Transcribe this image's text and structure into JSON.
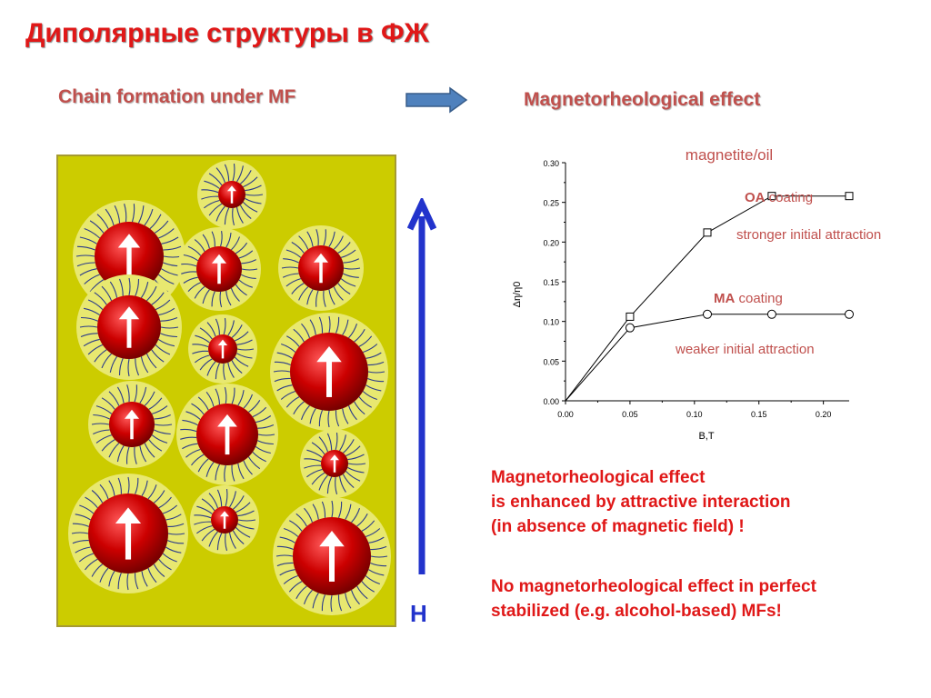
{
  "slide": {
    "title": "Диполярные структуры в ФЖ",
    "left_subtitle": "Chain formation under MF",
    "right_subtitle": "Magnetorheological effect",
    "field_label": "H",
    "notes": [
      [
        "Magnetorheological effect",
        "is enhanced by attractive interaction",
        "(in absence of magnetic field) !"
      ],
      [
        "No magnetorheological effect in perfect",
        "stabilized (e.g. alcohol-based) MFs!"
      ]
    ],
    "colors": {
      "title": "#e01818",
      "subtitle": "#c0504d",
      "box": "#cccc00",
      "particle_core": "#cc0000",
      "shell": "#e8e870",
      "field_arrow": "#2233cc",
      "connector_arrow": "#4f81bd"
    }
  },
  "chart_data": {
    "type": "line",
    "title": "magnetite/oil",
    "xlabel": "B,T",
    "ylabel": "Δη/η0",
    "xlim": [
      0.0,
      0.22
    ],
    "ylim": [
      0.0,
      0.3
    ],
    "x_ticks": [
      "0.00",
      "0.05",
      "0.10",
      "0.15",
      "0.20"
    ],
    "y_ticks": [
      "0.00",
      "0.05",
      "0.10",
      "0.15",
      "0.20",
      "0.25",
      "0.30"
    ],
    "series": [
      {
        "name": "OA coating",
        "marker": "square",
        "x": [
          0.0,
          0.05,
          0.11,
          0.16,
          0.22
        ],
        "y": [
          0.0,
          0.106,
          0.212,
          0.258,
          0.258
        ]
      },
      {
        "name": "MA coating",
        "marker": "circle",
        "x": [
          0.0,
          0.05,
          0.11,
          0.16,
          0.22
        ],
        "y": [
          0.0,
          0.092,
          0.109,
          0.109,
          0.109
        ]
      }
    ],
    "annotations": [
      {
        "bold": "OA",
        "text": " coating"
      },
      {
        "bold": "",
        "text": "stronger initial attraction"
      },
      {
        "bold": "MA",
        "text": " coating"
      },
      {
        "bold": "",
        "text": "weaker initial attraction"
      }
    ]
  }
}
